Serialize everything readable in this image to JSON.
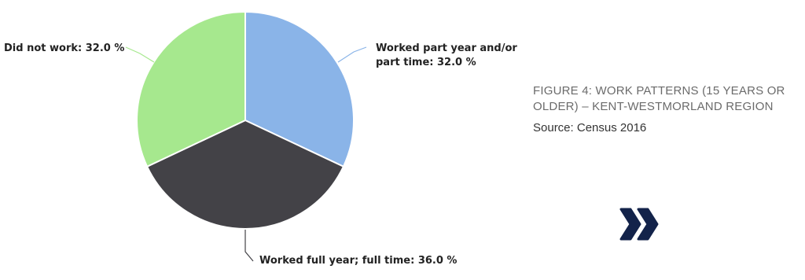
{
  "chart_data": {
    "type": "pie",
    "title": "FIGURE 4: WORK PATTERNS (15 YEARS OR OLDER) – KENT-WESTMORLAND REGION",
    "subtitle": "Source: Census 2016",
    "categories": [
      "Worked part year and/or part time",
      "Worked full year; full time",
      "Did not work"
    ],
    "values": [
      32.0,
      36.0,
      32.0
    ],
    "value_labels": [
      "32.0 %",
      "36.0 %",
      "32.0 %"
    ],
    "label_separator": ":",
    "colors": [
      "#8ab4e8",
      "#434247",
      "#a6e88e"
    ]
  }
}
